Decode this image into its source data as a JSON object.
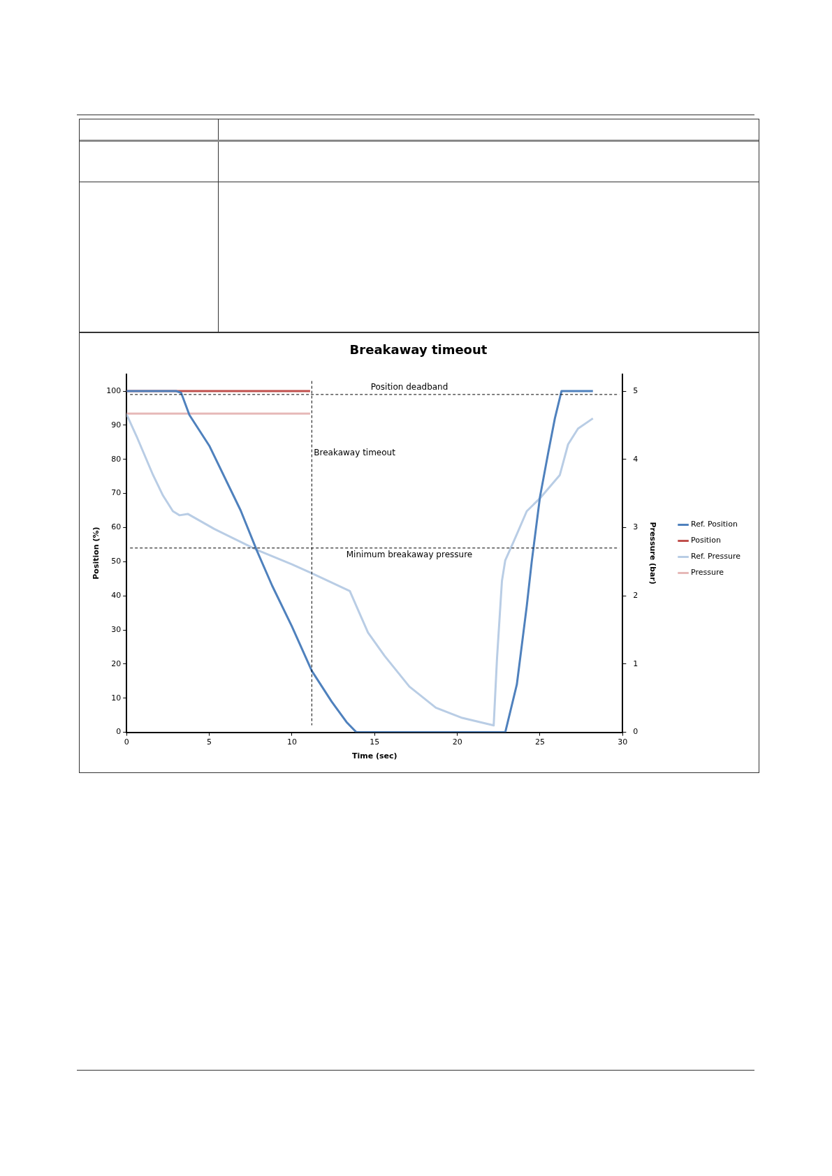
{
  "chart_data": {
    "type": "line",
    "title": "Breakaway timeout",
    "xlabel": "Time (sec)",
    "ylabel": "Position (%)",
    "y2label": "Pressure (bar)",
    "xlim": [
      0,
      30
    ],
    "xticks": [
      0,
      5,
      10,
      15,
      20,
      25,
      30
    ],
    "ylim": [
      0,
      105
    ],
    "yticks": [
      0,
      10,
      20,
      30,
      40,
      50,
      60,
      70,
      80,
      90,
      100
    ],
    "y2lim": [
      0,
      5.25
    ],
    "y2ticks": [
      0,
      1,
      2,
      3,
      4,
      5
    ],
    "grid": false,
    "legend": "right",
    "marker": "none",
    "series": [
      {
        "name": "Ref. Position",
        "color": "#4f81bd",
        "x": [
          0,
          3,
          3.3,
          3.8,
          5,
          6.9,
          7.9,
          8.8,
          10,
          11.2,
          12.4,
          13.3,
          13.9,
          22.9,
          23.6,
          24.2,
          24.5,
          25,
          25.5,
          25.9,
          26.3,
          28.2
        ],
        "values": [
          100,
          100,
          99.5,
          93,
          84,
          65,
          53,
          43,
          31,
          18,
          9,
          3,
          0,
          0,
          14,
          37,
          50,
          69,
          82,
          92,
          100,
          100
        ]
      },
      {
        "name": "Position",
        "color": "#c0504d",
        "x": [
          0,
          11.1
        ],
        "values": [
          100,
          100
        ]
      },
      {
        "name": "Ref. Pressure",
        "color": "#b9cde5",
        "axis": "y2",
        "x": [
          0,
          0.6,
          1.6,
          2.2,
          2.8,
          3.2,
          3.7,
          5.3,
          7.9,
          10,
          11.2,
          13.5,
          14.6,
          15.6,
          17.1,
          18.7,
          20.3,
          22.2,
          22.4,
          22.7,
          22.9,
          23.4,
          24.2,
          25,
          26.2,
          26.7,
          27.3,
          28.2
        ],
        "values": [
          4.66,
          4.34,
          3.77,
          3.47,
          3.24,
          3.18,
          3.2,
          2.98,
          2.67,
          2.46,
          2.33,
          2.07,
          1.46,
          1.12,
          0.67,
          0.36,
          0.21,
          0.1,
          1.08,
          2.22,
          2.52,
          2.79,
          3.24,
          3.43,
          3.77,
          4.22,
          4.45,
          4.6
        ]
      },
      {
        "name": "Pressure",
        "color": "#e6b9b8",
        "axis": "y2",
        "x": [
          0,
          11.1
        ],
        "values": [
          4.67,
          4.67
        ]
      }
    ],
    "ref_lines": [
      {
        "axis": "y",
        "value": 99,
        "label": "Position deadband",
        "color": "#000000",
        "line_style": "dashed"
      },
      {
        "axis": "y2",
        "value": 2.7,
        "label": "Minimum breakaway pressure",
        "color": "#000000",
        "line_style": "dashed"
      },
      {
        "axis": "x",
        "value": 11.2,
        "label": "Breakaway timeout",
        "color": "#000000",
        "line_style": "dashed"
      }
    ]
  }
}
